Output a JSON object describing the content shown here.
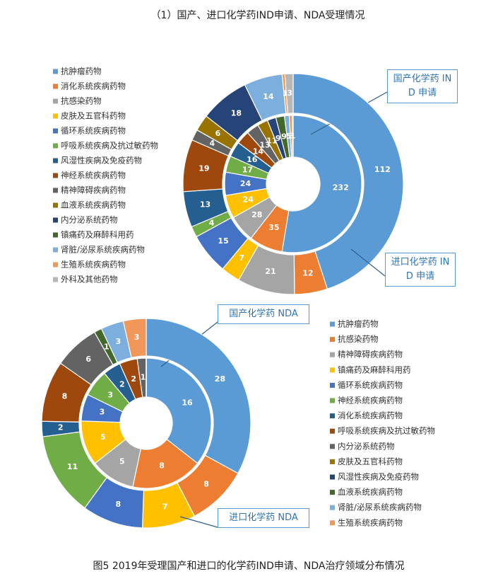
{
  "title": "（1）国产、进口化学药IND申请、NDA受理情况",
  "caption": "图5 2019年受理国产和进口的化学药IND申请、NDA治疗领域分布情况",
  "chart_data": [
    {
      "type": "donut",
      "categories": [
        "抗肿瘤药物",
        "消化系统疾病药物",
        "抗感染药物",
        "皮肤及五官科药物",
        "循环系统疾病药物",
        "呼吸系统疾病及抗过敏药物",
        "风湿性疾病及免疫药物",
        "神经系统疾病药物",
        "精神障碍疾病药物",
        "血液系统疾病药物",
        "内分泌系统药物",
        "镇痛药及麻醉科用药",
        "肾脏/泌尿系统疾病药物",
        "生殖系统疾病药物",
        "外科及其他药物"
      ],
      "colors": [
        "#5b9bd5",
        "#ed7d31",
        "#a5a5a5",
        "#ffc000",
        "#4472c4",
        "#70ad47",
        "#255e91",
        "#9e480e",
        "#636363",
        "#997300",
        "#264478",
        "#43682b",
        "#7cafdd",
        "#f1975a",
        "#b7b7b7"
      ],
      "series": [
        {
          "name": "国产化学药 IND 申请",
          "values": [
            232,
            35,
            28,
            24,
            24,
            17,
            16,
            14,
            13,
            11,
            9,
            9,
            5,
            3,
            1
          ]
        },
        {
          "name": "进口化学药 IND 申请",
          "values": [
            112,
            12,
            21,
            7,
            15,
            4,
            13,
            19,
            4,
            6,
            18,
            0,
            14,
            1,
            3
          ]
        }
      ]
    },
    {
      "type": "donut",
      "categories": [
        "抗肿瘤药物",
        "抗感染药物",
        "精神障碍疾病药物",
        "镇痛药及麻醉科用药",
        "循环系统疾病药物",
        "神经系统疾病药物",
        "消化系统疾病药物",
        "呼吸系统疾病及抗过敏药物",
        "内分泌系统药物",
        "皮肤及五官科药物",
        "风湿性疾病及免疫药物",
        "血液系统疾病药物",
        "肾脏/泌尿系统疾病药物",
        "生殖系统疾病药物"
      ],
      "colors": [
        "#5b9bd5",
        "#ed7d31",
        "#a5a5a5",
        "#ffc000",
        "#4472c4",
        "#70ad47",
        "#255e91",
        "#9e480e",
        "#636363",
        "#997300",
        "#264478",
        "#43682b",
        "#7cafdd",
        "#f1975a"
      ],
      "series": [
        {
          "name": "国产化学药 NDA",
          "values": [
            16,
            8,
            5,
            5,
            3,
            3,
            2,
            2,
            1,
            0,
            0,
            0,
            0,
            0
          ]
        },
        {
          "name": "进口化学药 NDA",
          "values": [
            28,
            8,
            0,
            7,
            8,
            11,
            2,
            8,
            6,
            0,
            0,
            1,
            3,
            3
          ]
        }
      ]
    }
  ]
}
